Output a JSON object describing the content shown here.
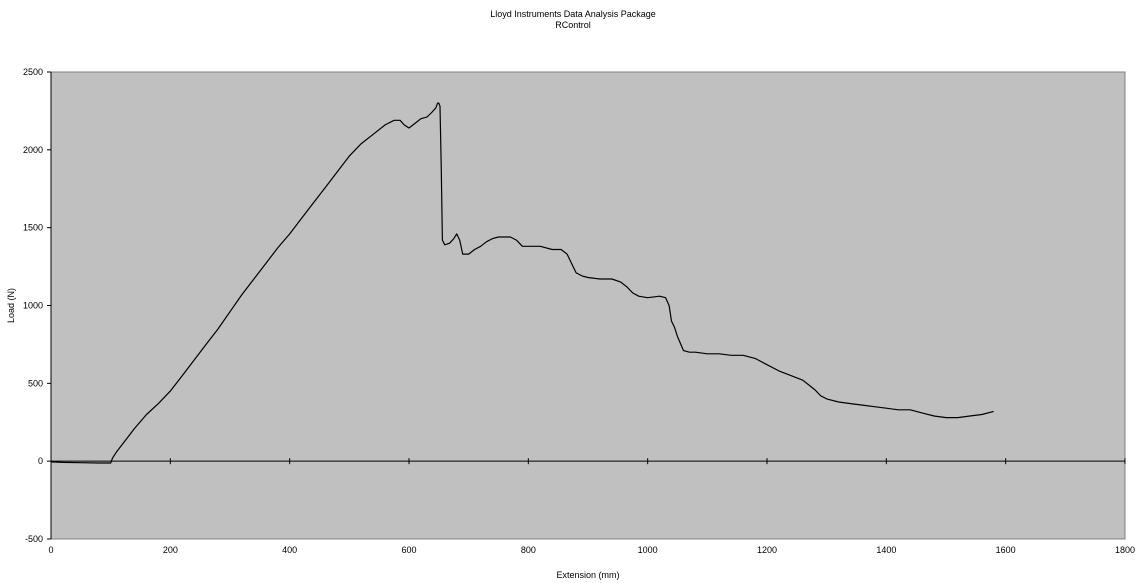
{
  "chart_data": {
    "type": "line",
    "title": "Lloyd Instruments Data Analysis Package",
    "subtitle": "RControl",
    "xlabel": "Extension (mm)",
    "ylabel": "Load (N)",
    "xlim": [
      0,
      1800
    ],
    "ylim": [
      -500,
      2500
    ],
    "xticks": [
      0,
      200,
      400,
      600,
      800,
      1000,
      1200,
      1400,
      1600,
      1800
    ],
    "yticks": [
      -500,
      0,
      500,
      1000,
      1500,
      2000,
      2500
    ],
    "grid": false,
    "legend": "none",
    "colors": {
      "plot_area": "#c0c0c0",
      "line": "#000000",
      "axis": "#000000"
    },
    "series": [
      {
        "x": [
          0,
          20,
          50,
          80,
          100,
          103,
          110,
          120,
          140,
          160,
          180,
          200,
          220,
          240,
          260,
          280,
          300,
          320,
          340,
          360,
          380,
          400,
          420,
          440,
          460,
          480,
          500,
          520,
          540,
          560,
          575,
          585,
          592,
          600,
          610,
          620,
          630,
          638,
          645,
          648,
          650,
          652,
          654,
          656,
          660,
          668,
          675,
          680,
          685,
          690,
          700,
          710,
          720,
          730,
          740,
          750,
          760,
          770,
          780,
          790,
          800,
          820,
          840,
          855,
          865,
          870,
          875,
          880,
          890,
          900,
          920,
          940,
          955,
          965,
          975,
          985,
          1000,
          1020,
          1030,
          1036,
          1040,
          1045,
          1050,
          1060,
          1070,
          1080,
          1100,
          1120,
          1140,
          1160,
          1180,
          1200,
          1220,
          1240,
          1260,
          1280,
          1290,
          1300,
          1320,
          1340,
          1360,
          1380,
          1400,
          1420,
          1440,
          1460,
          1480,
          1500,
          1520,
          1540,
          1560,
          1580
        ],
        "y": [
          -5,
          -8,
          -10,
          -12,
          -12,
          20,
          60,
          110,
          210,
          300,
          370,
          450,
          550,
          650,
          750,
          850,
          960,
          1070,
          1170,
          1270,
          1370,
          1460,
          1560,
          1660,
          1760,
          1860,
          1960,
          2040,
          2100,
          2160,
          2190,
          2190,
          2160,
          2140,
          2170,
          2200,
          2210,
          2240,
          2270,
          2300,
          2300,
          2280,
          1900,
          1420,
          1390,
          1400,
          1430,
          1460,
          1420,
          1330,
          1330,
          1360,
          1380,
          1410,
          1430,
          1440,
          1440,
          1440,
          1420,
          1380,
          1380,
          1380,
          1360,
          1360,
          1330,
          1290,
          1250,
          1210,
          1190,
          1180,
          1170,
          1170,
          1150,
          1120,
          1080,
          1060,
          1050,
          1060,
          1050,
          1000,
          900,
          860,
          800,
          710,
          700,
          700,
          690,
          690,
          680,
          680,
          660,
          620,
          580,
          550,
          520,
          460,
          420,
          400,
          380,
          370,
          360,
          350,
          340,
          330,
          330,
          310,
          290,
          280,
          280,
          290,
          300,
          320
        ]
      }
    ]
  }
}
